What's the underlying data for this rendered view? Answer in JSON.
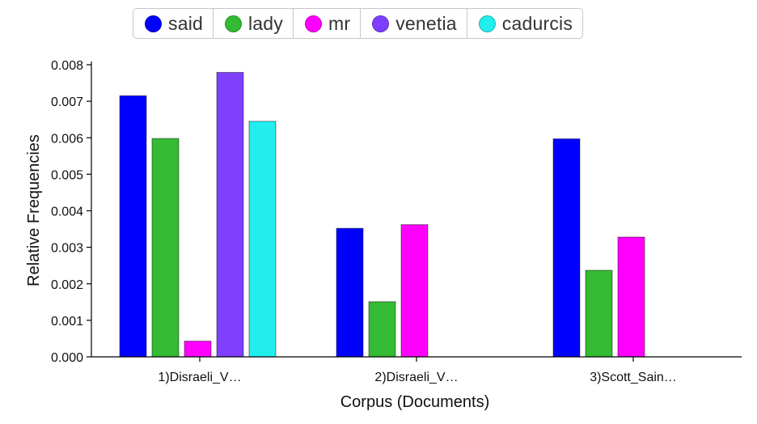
{
  "chart_data": {
    "type": "bar",
    "categories": [
      "1)Disraeli_V…",
      "2)Disraeli_V…",
      "3)Scott_Sain…"
    ],
    "series": [
      {
        "name": "said",
        "color": "#0000ff",
        "values": [
          0.00715,
          0.00352,
          0.00597
        ]
      },
      {
        "name": "lady",
        "color": "#33bb33",
        "values": [
          0.00598,
          0.00151,
          0.00237
        ]
      },
      {
        "name": "mr",
        "color": "#ff00ff",
        "values": [
          0.00043,
          0.00362,
          0.00328
        ]
      },
      {
        "name": "venetia",
        "color": "#7f3fff",
        "values": [
          0.00779,
          null,
          null
        ]
      },
      {
        "name": "cadurcis",
        "color": "#22eeee",
        "values": [
          0.00645,
          null,
          null
        ]
      }
    ],
    "title": "",
    "xlabel": "Corpus (Documents)",
    "ylabel": "Relative Frequencies",
    "ylim": [
      0,
      0.008
    ],
    "yticks": [
      "0.000",
      "0.001",
      "0.002",
      "0.003",
      "0.004",
      "0.005",
      "0.006",
      "0.007",
      "0.008"
    ],
    "grid": false,
    "legend_position": "top-center"
  }
}
